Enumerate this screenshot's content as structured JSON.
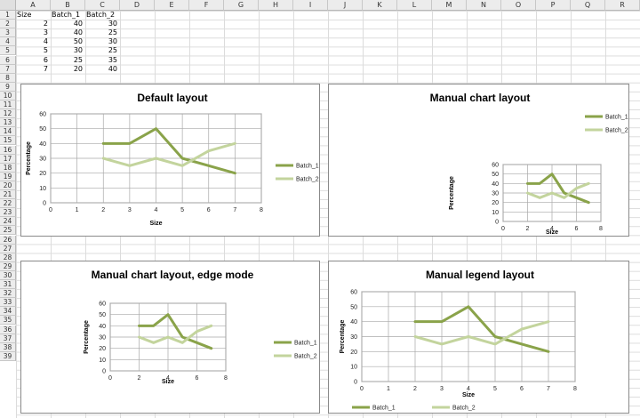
{
  "columns": [
    "A",
    "B",
    "C",
    "D",
    "E",
    "F",
    "G",
    "H",
    "I",
    "J",
    "K",
    "L",
    "M",
    "N",
    "O",
    "P",
    "Q",
    "R"
  ],
  "rows": [
    "1",
    "2",
    "3",
    "4",
    "5",
    "6",
    "7",
    "8",
    "9",
    "10",
    "11",
    "12",
    "13",
    "14",
    "15",
    "16",
    "17",
    "18",
    "19",
    "20",
    "21",
    "22",
    "23",
    "24",
    "25",
    "26",
    "27",
    "28",
    "29",
    "30",
    "31",
    "32",
    "33",
    "34",
    "35",
    "36",
    "37",
    "38",
    "39"
  ],
  "sheet": {
    "headers": [
      "Size",
      "Batch_1",
      "Batch_2"
    ],
    "data": [
      [
        2,
        40,
        30
      ],
      [
        3,
        40,
        25
      ],
      [
        4,
        50,
        30
      ],
      [
        5,
        30,
        25
      ],
      [
        6,
        25,
        35
      ],
      [
        7,
        20,
        40
      ]
    ]
  },
  "colors": {
    "batch_1": "#8aa34a",
    "batch_2": "#c3d49d"
  },
  "chart_data": [
    {
      "type": "line",
      "title": "Default layout",
      "xlabel": "Size",
      "ylabel": "Percentage",
      "x": [
        2,
        3,
        4,
        5,
        6,
        7
      ],
      "xlim": [
        0,
        8
      ],
      "ylim": [
        0,
        60
      ],
      "xticks": [
        0,
        1,
        2,
        3,
        4,
        5,
        6,
        7,
        8
      ],
      "yticks": [
        0,
        10,
        20,
        30,
        40,
        50,
        60
      ],
      "series": [
        {
          "name": "Batch_1",
          "values": [
            40,
            40,
            50,
            30,
            25,
            20
          ]
        },
        {
          "name": "Batch_2",
          "values": [
            30,
            25,
            30,
            25,
            35,
            40
          ]
        }
      ],
      "grid": true,
      "legend": "right"
    },
    {
      "type": "line",
      "title": "Manual chart layout",
      "xlabel": "Size",
      "ylabel": "Percentage",
      "x": [
        2,
        3,
        4,
        5,
        6,
        7
      ],
      "xlim": [
        0,
        8
      ],
      "ylim": [
        0,
        60
      ],
      "xticks": [
        0,
        2,
        4,
        6,
        8
      ],
      "yticks": [
        0,
        10,
        20,
        30,
        40,
        50,
        60
      ],
      "series": [
        {
          "name": "Batch_1",
          "values": [
            40,
            40,
            50,
            30,
            25,
            20
          ]
        },
        {
          "name": "Batch_2",
          "values": [
            30,
            25,
            30,
            25,
            35,
            40
          ]
        }
      ],
      "grid": true,
      "legend": "top-right"
    },
    {
      "type": "line",
      "title": "Manual chart layout, edge mode",
      "xlabel": "Size",
      "ylabel": "Percentage",
      "x": [
        2,
        3,
        4,
        5,
        6,
        7
      ],
      "xlim": [
        0,
        8
      ],
      "ylim": [
        0,
        60
      ],
      "xticks": [
        0,
        2,
        4,
        6,
        8
      ],
      "yticks": [
        0,
        10,
        20,
        30,
        40,
        50,
        60
      ],
      "series": [
        {
          "name": "Batch_1",
          "values": [
            40,
            40,
            50,
            30,
            25,
            20
          ]
        },
        {
          "name": "Batch_2",
          "values": [
            30,
            25,
            30,
            25,
            35,
            40
          ]
        }
      ],
      "grid": true,
      "legend": "right"
    },
    {
      "type": "line",
      "title": "Manual legend layout",
      "xlabel": "Size",
      "ylabel": "Percentage",
      "x": [
        2,
        3,
        4,
        5,
        6,
        7
      ],
      "xlim": [
        0,
        8
      ],
      "ylim": [
        0,
        60
      ],
      "xticks": [
        0,
        1,
        2,
        3,
        4,
        5,
        6,
        7,
        8
      ],
      "yticks": [
        0,
        10,
        20,
        30,
        40,
        50,
        60
      ],
      "series": [
        {
          "name": "Batch_1",
          "values": [
            40,
            40,
            50,
            30,
            25,
            20
          ]
        },
        {
          "name": "Batch_2",
          "values": [
            30,
            25,
            30,
            25,
            35,
            40
          ]
        }
      ],
      "grid": true,
      "legend": "bottom-left"
    }
  ]
}
